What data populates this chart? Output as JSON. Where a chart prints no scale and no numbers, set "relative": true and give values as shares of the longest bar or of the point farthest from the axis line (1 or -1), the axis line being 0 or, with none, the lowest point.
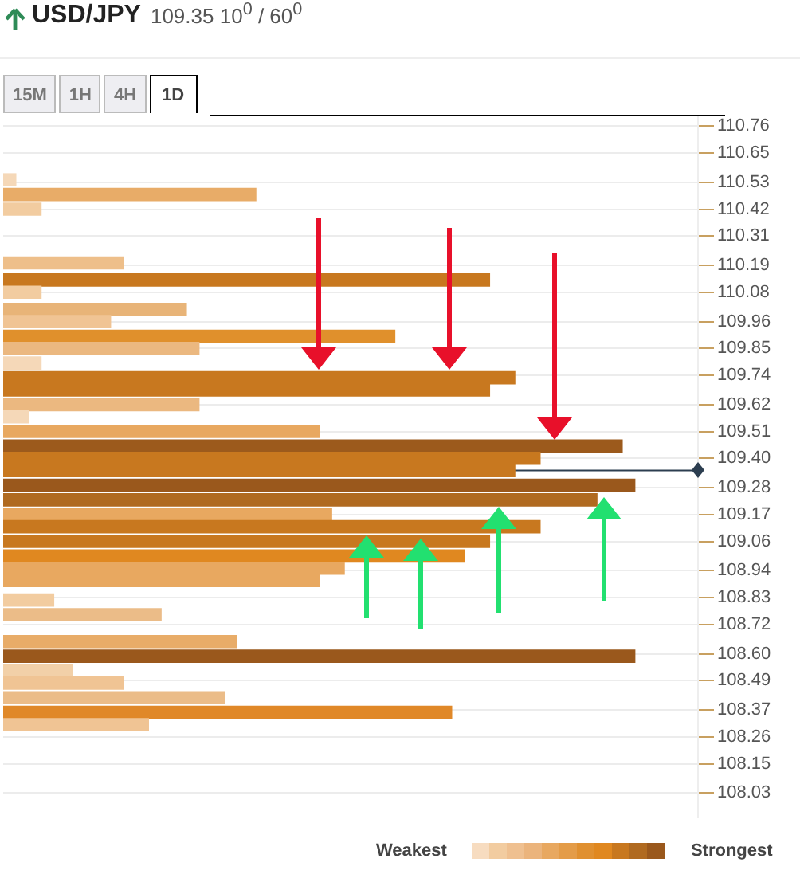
{
  "chart_data": {
    "type": "bar",
    "orientation": "horizontal",
    "relative": true,
    "title": "USD/JPY",
    "subtitle": "109.35 10$^{0}$ / 60$^{0}$",
    "annotations": [
      "15M",
      "1H",
      "4H",
      "1D",
      "Weakest",
      "Strongest"
    ],
    "x": [
      110.54,
      110.48,
      110.42,
      110.2,
      110.13,
      110.08,
      110.01,
      109.96,
      109.9,
      109.85,
      109.79,
      109.73,
      109.68,
      109.62,
      109.57,
      109.51,
      109.45,
      109.4,
      109.35,
      109.29,
      109.23,
      109.17,
      109.12,
      109.06,
      109.0,
      108.95,
      108.9,
      108.82,
      108.76,
      108.65,
      108.59,
      108.53,
      108.48,
      108.42,
      108.36,
      108.31
    ],
    "values": [
      0.02,
      0.4,
      0.06,
      0.19,
      0.77,
      0.06,
      0.29,
      0.17,
      0.62,
      0.31,
      0.06,
      0.81,
      0.77,
      0.31,
      0.04,
      0.5,
      0.98,
      0.85,
      0.81,
      1,
      0.94,
      0.52,
      0.85,
      0.77,
      0.73,
      0.54,
      0.5,
      0.08,
      0.25,
      0.37,
      1,
      0.11,
      0.19,
      0.35,
      0.71,
      0.23
    ],
    "colors": [
      "#f5d8b8",
      "#e8ac68",
      "#f2ccA0",
      "#eebf8a",
      "#c8781f",
      "#f2cca0",
      "#e8b478",
      "#f0c494",
      "#e0902c",
      "#ebb880",
      "#f5d8b8",
      "#c8781f",
      "#c8781f",
      "#ebb880",
      "#f5d8b8",
      "#e8a860",
      "#9c5a1c",
      "#c8781f",
      "#c8781f",
      "#9a581c",
      "#b06a20",
      "#e8a860",
      "#c8781f",
      "#c8781f",
      "#e08820",
      "#e8a860",
      "#e8a860",
      "#f2cca0",
      "#ebbc88",
      "#e8ac68",
      "#9a581c",
      "#f2d0a8",
      "#f0c494",
      "#ebbc88",
      "#e08828",
      "#f0c494"
    ],
    "ylim": [
      107.93,
      110.8
    ],
    "yticks": [
      110.76,
      110.65,
      110.53,
      110.42,
      110.31,
      110.19,
      110.08,
      109.96,
      109.85,
      109.74,
      109.62,
      109.51,
      {
        "value": 109.4,
        "label": "109.40"
      },
      109.28,
      109.17,
      109.06,
      108.94,
      108.83,
      108.72,
      {
        "value": 108.6,
        "label": "108.60"
      },
      108.49,
      108.37,
      108.26,
      108.15,
      108.03
    ],
    "ref_lines": [
      {
        "axis": "y",
        "value": 109.35,
        "color": "#2c3e50"
      }
    ],
    "grid": "y",
    "legend": false
  }
}
